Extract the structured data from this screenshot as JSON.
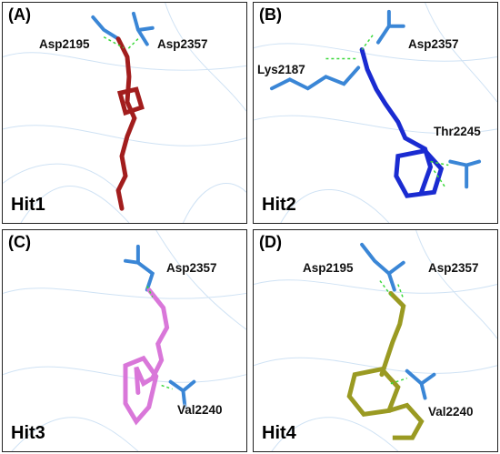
{
  "panels": [
    {
      "label": "(A)",
      "hit": "Hit1",
      "residues": [
        "Asp2195",
        "Asp2357"
      ]
    },
    {
      "label": "(B)",
      "hit": "Hit2",
      "residues": [
        "Asp2357",
        "Lys2187",
        "Thr2245"
      ]
    },
    {
      "label": "(C)",
      "hit": "Hit3",
      "residues": [
        "Asp2357",
        "Val2240"
      ]
    },
    {
      "label": "(D)",
      "hit": "Hit4",
      "residues": [
        "Asp2195",
        "Asp2357",
        "Val2240"
      ]
    }
  ],
  "colors": {
    "protein_residue": "#3a86d6",
    "hit1": "#a21d1d",
    "hit2": "#1a2bd1",
    "hit3": "#d977d9",
    "hit4": "#9a9a22",
    "hbond": "#39d839",
    "ribbon": "#c9dff2"
  }
}
